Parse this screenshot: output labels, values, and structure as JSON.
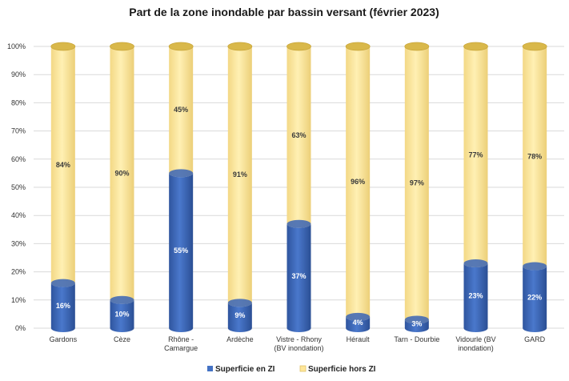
{
  "chart_data": {
    "type": "bar",
    "stacked": true,
    "title": "Part de la zone inondable par bassin versant (février 2023)",
    "categories": [
      [
        "Gardons"
      ],
      [
        "Cèze"
      ],
      [
        "Rhône -",
        "Camargue"
      ],
      [
        "Ardèche"
      ],
      [
        "Vistre - Rhony",
        "(BV inondation)"
      ],
      [
        "Hérault"
      ],
      [
        "Tarn - Dourbie"
      ],
      [
        "Vidourle (BV",
        "inondation)"
      ],
      [
        "GARD"
      ]
    ],
    "ylim": [
      0,
      100
    ],
    "yticks": [
      "0%",
      "10%",
      "20%",
      "30%",
      "40%",
      "50%",
      "60%",
      "70%",
      "80%",
      "90%",
      "100%"
    ],
    "grid": true,
    "legend_position": "bottom",
    "series": [
      {
        "name": "Superficie en ZI",
        "color": "#4472c4",
        "values": [
          16,
          10,
          55,
          9,
          37,
          4,
          3,
          23,
          22
        ],
        "labels": [
          "16%",
          "10%",
          "55%",
          "9%",
          "37%",
          "4%",
          "3%",
          "23%",
          "22%"
        ]
      },
      {
        "name": "Superficie hors ZI",
        "color": "#ffe699",
        "values": [
          84,
          90,
          45,
          91,
          63,
          96,
          97,
          77,
          78
        ],
        "labels": [
          "84%",
          "90%",
          "45%",
          "91%",
          "63%",
          "96%",
          "97%",
          "77%",
          "78%"
        ]
      }
    ]
  }
}
